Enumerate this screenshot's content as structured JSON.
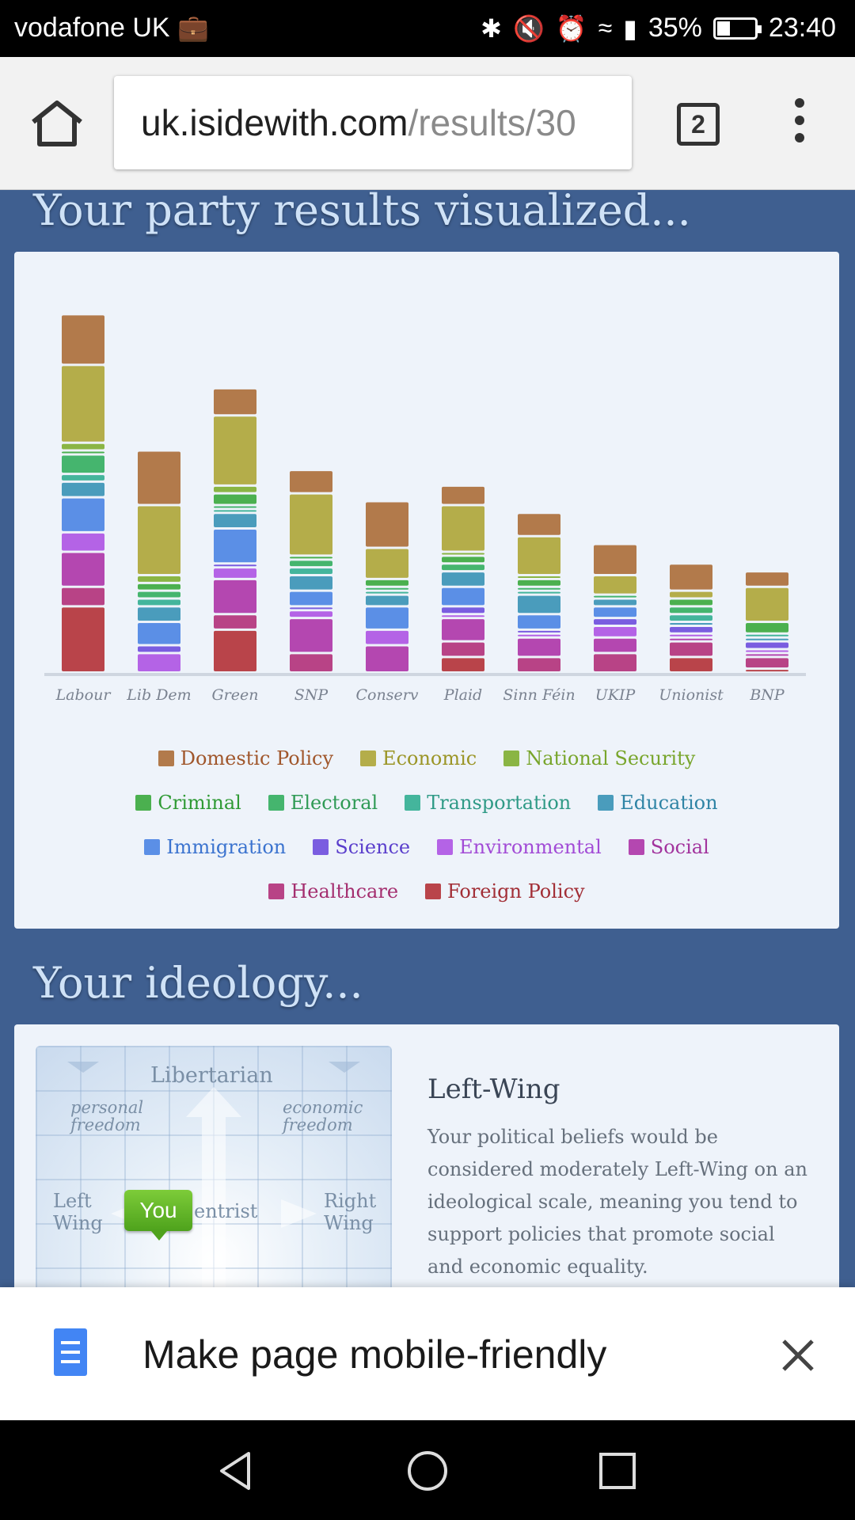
{
  "status_bar": {
    "carrier": "vodafone UK",
    "battery_percent_text": "35%",
    "battery_level": 0.35,
    "time": "23:40",
    "icons": [
      "briefcase-icon",
      "bluetooth-icon",
      "mute-icon",
      "alarm-icon",
      "wifi-icon",
      "signal-icon",
      "battery-icon"
    ]
  },
  "browser": {
    "url_host": "uk.isidewith.com",
    "url_path": "/results/30",
    "tab_count": "2"
  },
  "results": {
    "title": "Your party results visualized..."
  },
  "legend_colors": {
    "Domestic Policy": "#b27a4b",
    "Economic": "#b4ad4a",
    "National Security": "#8ab544",
    "Criminal": "#4bb04f",
    "Electoral": "#45b56e",
    "Transportation": "#44b59c",
    "Education": "#4a9cbc",
    "Immigration": "#5b8fe6",
    "Science": "#7a5de0",
    "Environmental": "#b463e6",
    "Social": "#b447b0",
    "Healthcare": "#b84386",
    "Foreign Policy": "#b9444a"
  },
  "legend_text_colors": {
    "Domestic Policy": "#a0562b",
    "Economic": "#9b9526",
    "National Security": "#78a52b",
    "Criminal": "#2f9a34",
    "Electoral": "#2f9a55",
    "Transportation": "#2f9a86",
    "Education": "#2f84a5",
    "Immigration": "#3b73cf",
    "Science": "#5a3ecc",
    "Environmental": "#a24bd6",
    "Social": "#a2339d",
    "Healthcare": "#a42e6f",
    "Foreign Policy": "#a22e36"
  },
  "legend_rows": [
    [
      "Domestic Policy",
      "Economic",
      "National Security"
    ],
    [
      "Criminal",
      "Electoral",
      "Transportation",
      "Education"
    ],
    [
      "Immigration",
      "Science",
      "Environmental",
      "Social"
    ],
    [
      "Healthcare",
      "Foreign Policy"
    ]
  ],
  "chart_data": {
    "type": "bar",
    "stacked": true,
    "categories": [
      "Labour",
      "Lib Dem",
      "Green",
      "SNP",
      "Conserv",
      "Plaid",
      "Sinn Féin",
      "UKIP",
      "Unionist",
      "BNP"
    ],
    "title": "",
    "xlabel": "",
    "ylabel": "",
    "ylim": [
      0,
      100
    ],
    "series": [
      {
        "name": "Foreign Policy",
        "values": [
          17,
          0,
          11,
          0,
          0,
          4,
          0,
          0,
          4,
          1
        ]
      },
      {
        "name": "Healthcare",
        "values": [
          5,
          0,
          4,
          5,
          0,
          4,
          4,
          5,
          4,
          3
        ]
      },
      {
        "name": "Social",
        "values": [
          9,
          0,
          9,
          9,
          7,
          6,
          5,
          4,
          1,
          1
        ]
      },
      {
        "name": "Environmental",
        "values": [
          5,
          5,
          3,
          2,
          4,
          1,
          1,
          3,
          1,
          1
        ]
      },
      {
        "name": "Science",
        "values": [
          0,
          2,
          1,
          1,
          0,
          2,
          1,
          2,
          2,
          2
        ]
      },
      {
        "name": "Immigration",
        "values": [
          9,
          6,
          9,
          4,
          6,
          5,
          4,
          3,
          0,
          0
        ]
      },
      {
        "name": "Education",
        "values": [
          4,
          4,
          4,
          4,
          3,
          4,
          5,
          2,
          1,
          1
        ]
      },
      {
        "name": "Transportation",
        "values": [
          2,
          2,
          1,
          2,
          1,
          0,
          1,
          0,
          2,
          1
        ]
      },
      {
        "name": "Electoral",
        "values": [
          5,
          2,
          1,
          2,
          1,
          2,
          1,
          1,
          2,
          0
        ]
      },
      {
        "name": "Criminal",
        "values": [
          1,
          2,
          3,
          1,
          2,
          2,
          2,
          0,
          2,
          3
        ]
      },
      {
        "name": "National Security",
        "values": [
          2,
          2,
          2,
          0,
          0,
          1,
          1,
          0,
          0,
          0
        ]
      },
      {
        "name": "Economic",
        "values": [
          20,
          18,
          18,
          16,
          8,
          12,
          10,
          5,
          2,
          9
        ]
      },
      {
        "name": "Domestic Policy",
        "values": [
          13,
          14,
          7,
          6,
          12,
          5,
          6,
          8,
          7,
          4
        ]
      }
    ]
  },
  "ideology": {
    "title": "Your ideology...",
    "heading": "Left-Wing",
    "description": "Your political beliefs would be considered moderately Left-Wing on an ideological scale, meaning you tend to support policies that promote social and economic equality.",
    "diagram": {
      "top_label": "Libertarian",
      "top_left_label_1": "personal",
      "top_left_label_2": "freedom",
      "top_right_label_1": "economic",
      "top_right_label_2": "freedom",
      "left_label_1": "Left",
      "left_label_2": "Wing",
      "center_label": "entrist",
      "right_label_1": "Right",
      "right_label_2": "Wing",
      "marker": "You"
    }
  },
  "banner": {
    "text": "Make page mobile-friendly"
  }
}
